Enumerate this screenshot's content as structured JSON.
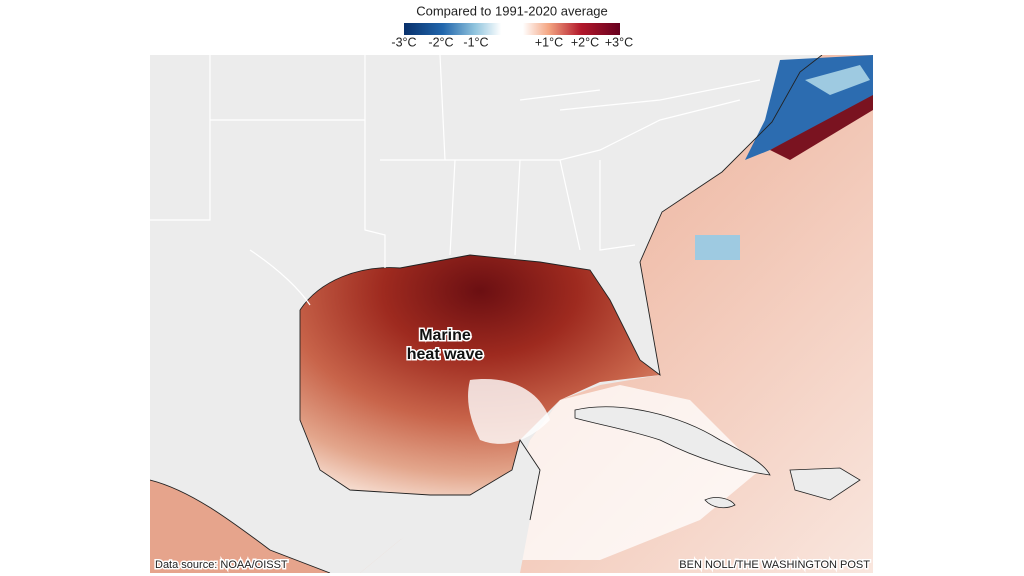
{
  "legend": {
    "title": "Compared to 1991-2020 average",
    "labels": [
      "-3°C",
      "-2°C",
      "-1°C",
      "+1°C",
      "+2°C",
      "+3°C"
    ]
  },
  "annotation": {
    "lines": [
      "Marine",
      "heat wave"
    ]
  },
  "source": "Data source: NOAA/OISST",
  "credit": "BEN NOLL/THE WASHINGTON POST"
}
